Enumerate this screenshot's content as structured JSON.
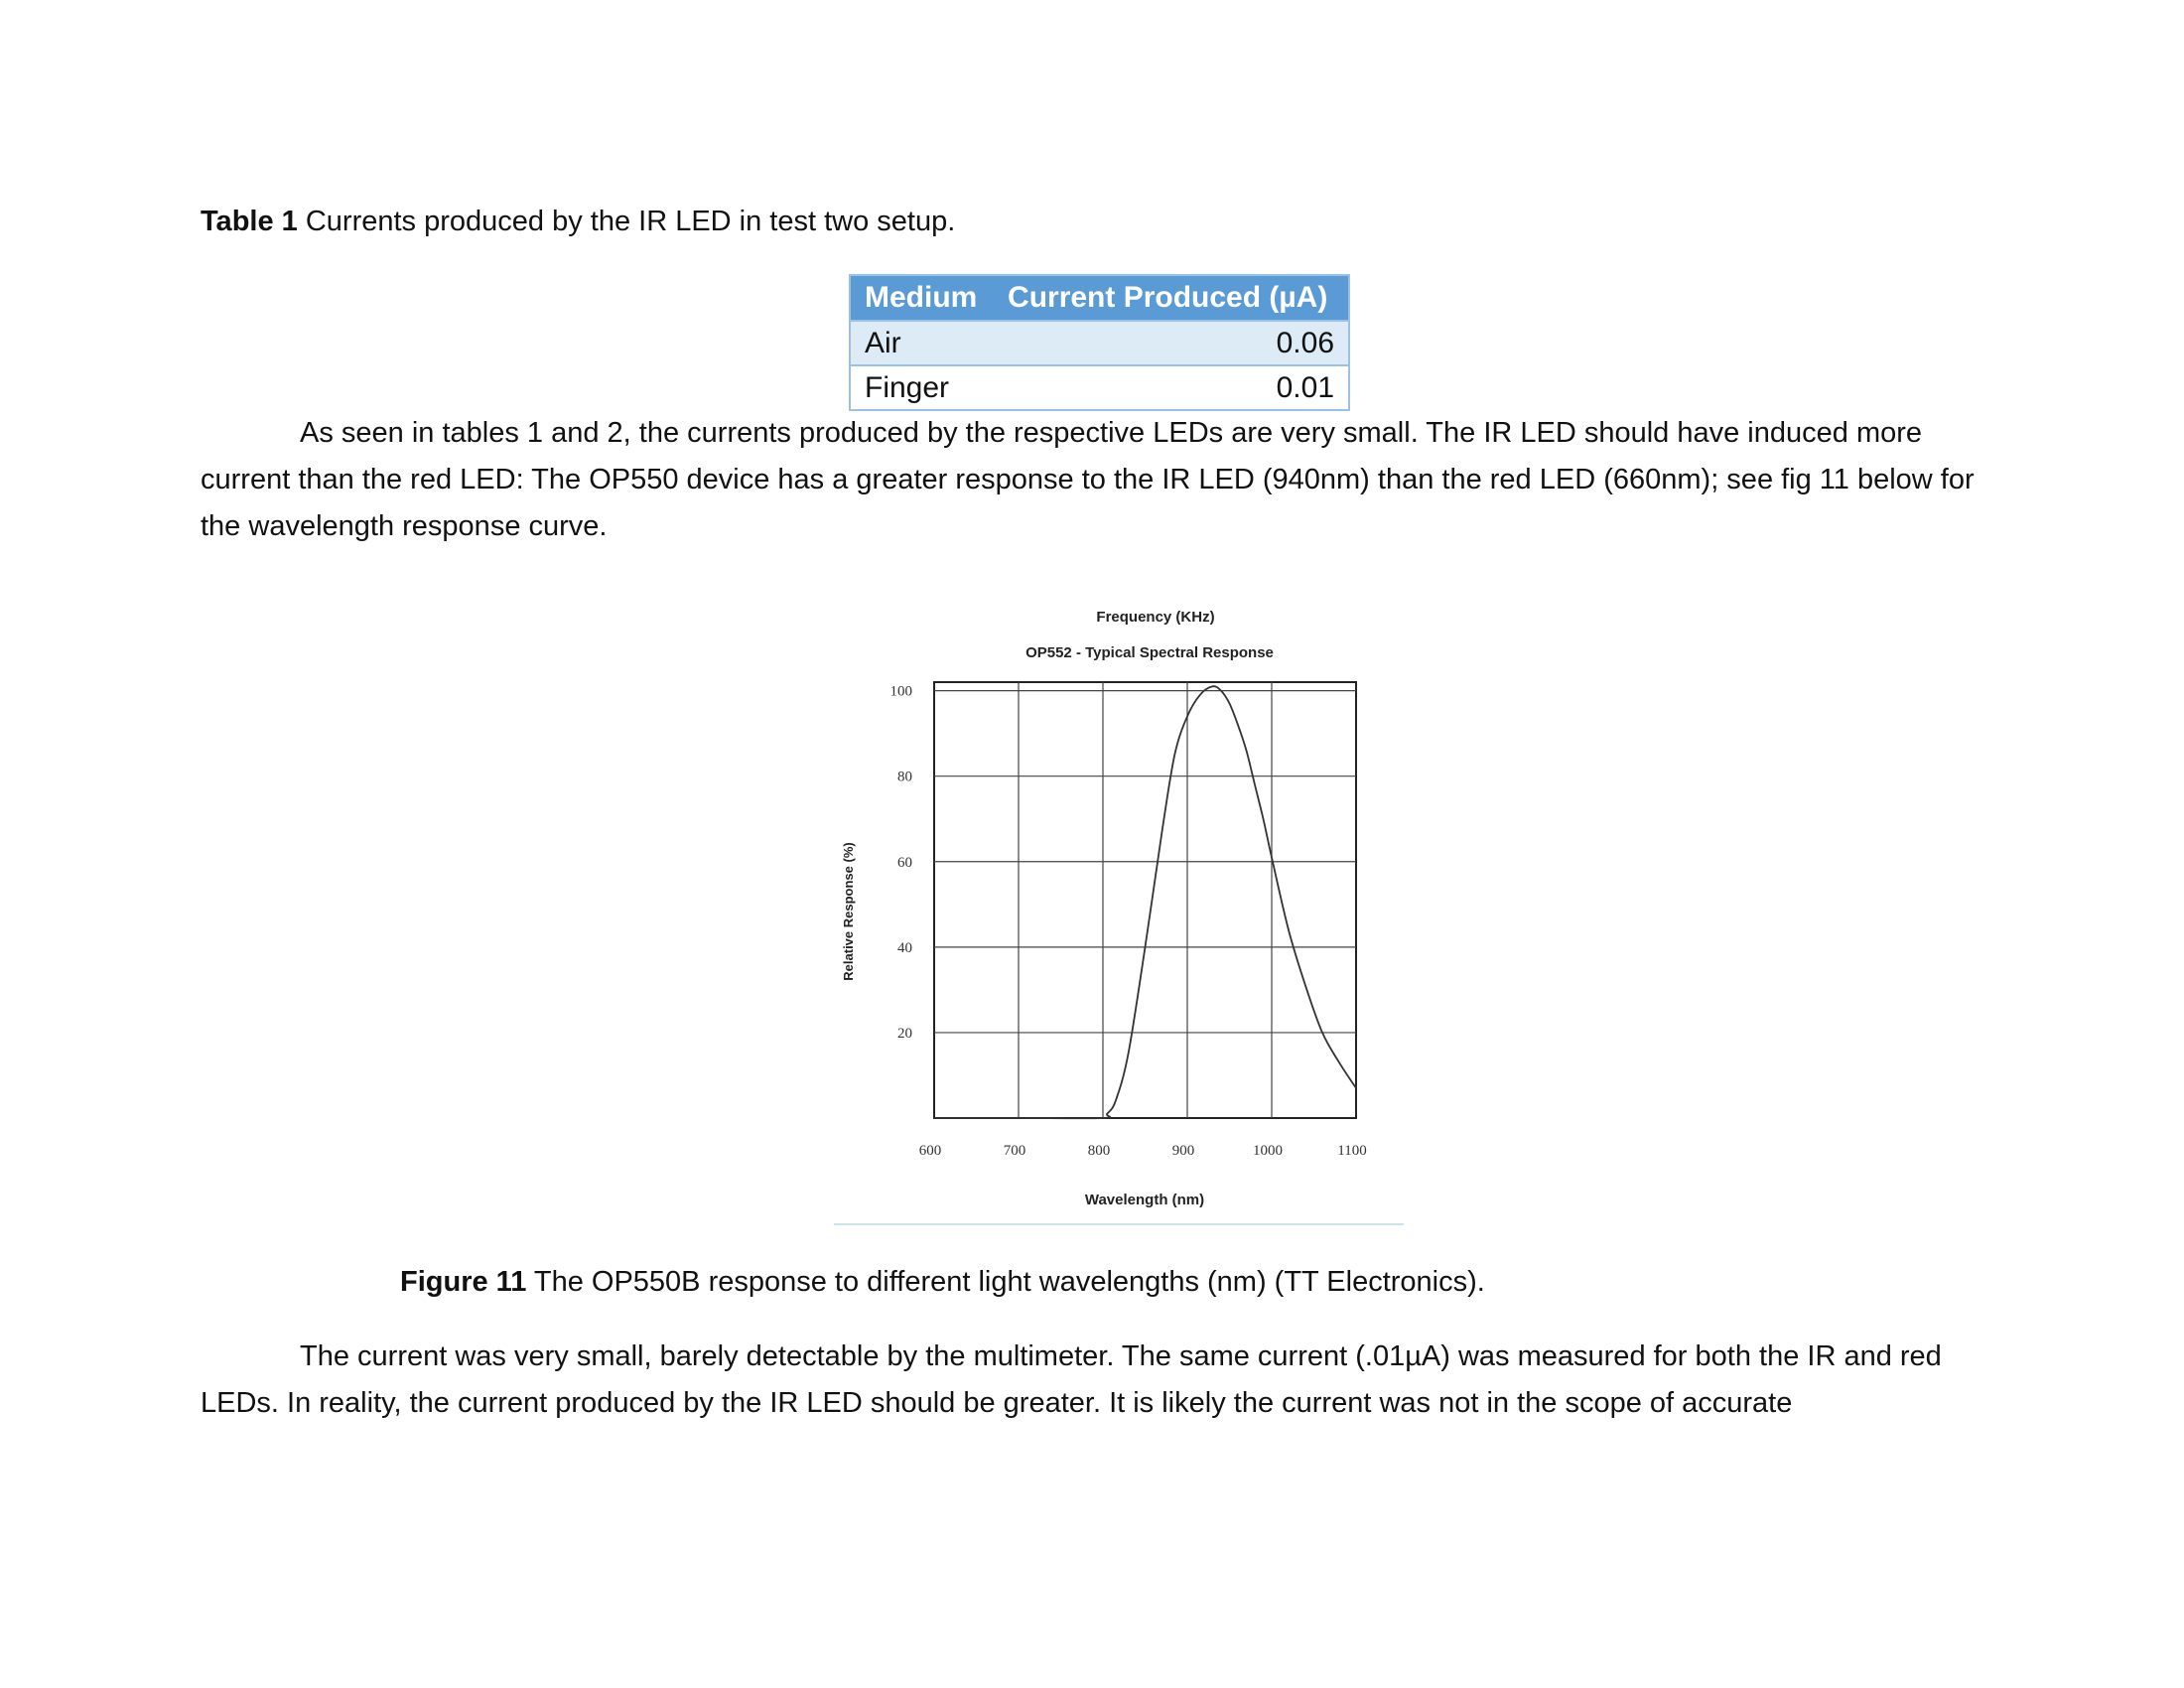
{
  "table_caption": {
    "label": "Table 1",
    "text": " Currents produced by the IR LED in test two setup."
  },
  "table": {
    "headers": [
      "Medium",
      "Current Produced (µA)"
    ],
    "rows": [
      [
        "Air",
        "0.06"
      ],
      [
        "Finger",
        "0.01"
      ]
    ]
  },
  "paragraph1": "As seen in tables 1 and 2, the currents produced by the respective LEDs are very small. The IR LED should have induced more current than the red LED: The OP550 device has a greater response to the IR LED (940nm) than the red LED (660nm); see fig 11 below for the wavelength response curve.",
  "figure_caption": {
    "label": "Figure 11",
    "text": " The OP550B response to different light wavelengths (nm) (TT Electronics)."
  },
  "paragraph2": "The current was very small, barely detectable by the multimeter. The same current (.01µA) was measured for both the IR and red LEDs. In reality, the current produced by the IR LED should be greater. It is likely the current was not in the scope of accurate",
  "chart_data": {
    "type": "line",
    "title": "OP552 - Typical Spectral Response",
    "subtitle": "Frequency (KHz)",
    "xlabel": "Wavelength (nm)",
    "ylabel": "Relative Response (%)",
    "xlim": [
      600,
      1100
    ],
    "ylim": [
      0,
      102
    ],
    "x_ticks": [
      600,
      700,
      800,
      900,
      1000,
      1100
    ],
    "y_ticks": [
      20,
      40,
      60,
      80,
      100
    ],
    "grid": true,
    "series": [
      {
        "x": [
          600,
          700,
          800,
          805,
          815,
          830,
          850,
          870,
          885,
          900,
          915,
          930,
          940,
          950,
          960,
          970,
          980,
          990,
          1000,
          1020,
          1040,
          1060,
          1080,
          1100
        ],
        "y": [
          0,
          0,
          0,
          1,
          4,
          15,
          40,
          67,
          85,
          94,
          99,
          101,
          100,
          97,
          92,
          86,
          78,
          70,
          61,
          44,
          31,
          20,
          13,
          7
        ]
      }
    ],
    "colors": {
      "line": "#333333",
      "grid": "#444444"
    }
  }
}
